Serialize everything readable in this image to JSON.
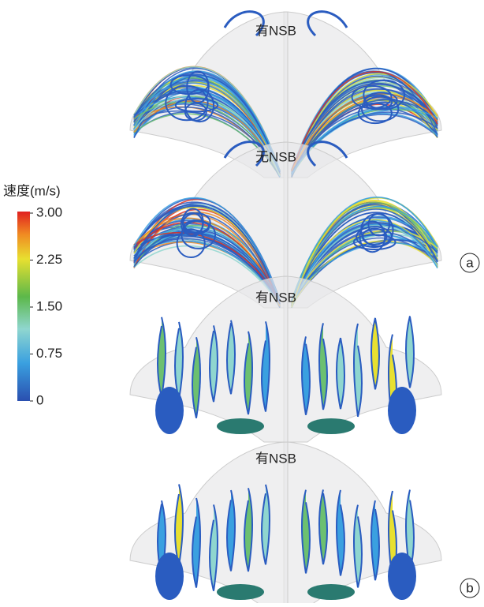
{
  "panels": [
    {
      "label": "有NSB"
    },
    {
      "label": "无NSB"
    },
    {
      "label": "有NSB"
    },
    {
      "label": "有NSB"
    }
  ],
  "panel_letters": [
    "a",
    "b"
  ],
  "colorbar": {
    "title": "速度(m/s)",
    "lim": [
      0,
      3
    ],
    "ticks": [
      {
        "value": 3,
        "label": "3.00"
      },
      {
        "value": 2.25,
        "label": "2.25"
      },
      {
        "value": 1.5,
        "label": "1.50"
      },
      {
        "value": 0.75,
        "label": "0.75"
      },
      0
    ]
  }
}
